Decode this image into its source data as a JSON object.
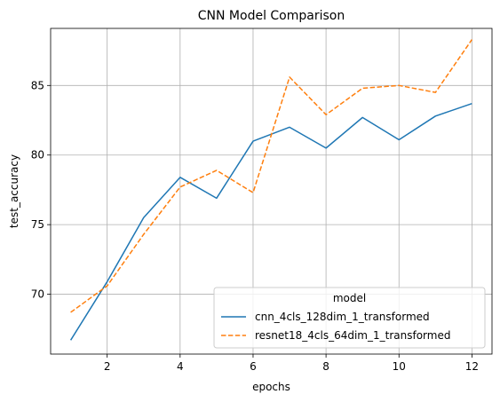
{
  "chart_data": {
    "type": "line",
    "title": "CNN Model Comparison",
    "xlabel": "epochs",
    "ylabel": "test_accuracy",
    "xlim": [
      0.45,
      12.55
    ],
    "ylim": [
      65.7,
      89.1
    ],
    "x_ticks": [
      2,
      4,
      6,
      8,
      10,
      12
    ],
    "y_ticks": [
      70,
      75,
      80,
      85
    ],
    "grid": true,
    "legend": {
      "title": "model",
      "placement": "lower-right"
    },
    "x": [
      1,
      2,
      3,
      4,
      5,
      6,
      7,
      8,
      9,
      10,
      11,
      12
    ],
    "series": [
      {
        "name": "cnn_4cls_128dim_1_transformed",
        "color": "#1f77b4",
        "style": "solid",
        "values": [
          66.7,
          70.9,
          75.5,
          78.4,
          76.9,
          81.0,
          82.0,
          80.5,
          82.7,
          81.1,
          82.8,
          83.7
        ]
      },
      {
        "name": "resnet18_4cls_64dim_1_transformed",
        "color": "#ff7f0e",
        "style": "dashed",
        "values": [
          68.7,
          70.6,
          74.3,
          77.7,
          78.9,
          77.3,
          85.6,
          82.9,
          84.8,
          85.0,
          84.5,
          88.3
        ]
      }
    ]
  }
}
